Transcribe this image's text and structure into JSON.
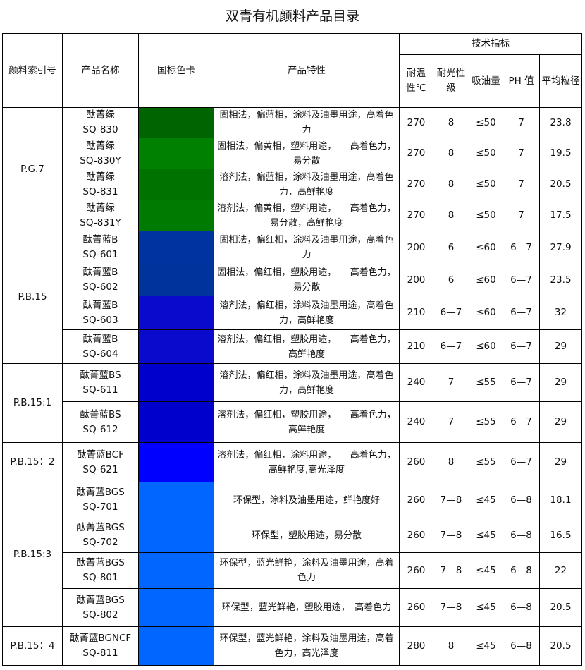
{
  "title": "双青有机颜料产品目录",
  "headers": {
    "index": "颜料索引号",
    "name": "产品名称",
    "color": "国标色卡",
    "feature": "产品特性",
    "tech": "技术指标",
    "heat": "耐温性℃",
    "light": "耐光性级",
    "oil": "吸油量",
    "ph": "PH 值",
    "size": "平均粒径"
  },
  "groups": [
    {
      "index": "P.G.7",
      "rows": [
        {
          "name": "酞菁绿",
          "code": "SQ-830",
          "color": "#006400",
          "feature": "固相法，偏蓝相，涂料及油墨用途，高着色力",
          "heat": "270",
          "light": "8",
          "oil": "≤50",
          "ph": "7",
          "size": "23.8"
        },
        {
          "name": "酞菁绿",
          "code": "SQ-830Y",
          "color": "#008000",
          "feature": "固相法，偏黄相，塑料用途，　　高着色力，易分散",
          "heat": "270",
          "light": "8",
          "oil": "≤50",
          "ph": "7",
          "size": "19.5"
        },
        {
          "name": "酞菁绿",
          "code": "SQ-831",
          "color": "#007200",
          "feature": "溶剂法，偏蓝相，涂料及油墨用途，高着色力，高鲜艳度",
          "heat": "270",
          "light": "8",
          "oil": "≤50",
          "ph": "7",
          "size": "20.5"
        },
        {
          "name": "酞菁绿",
          "code": "SQ-831Y",
          "color": "#007A00",
          "feature": "溶剂法，偏黄相，塑料用途，　　高着色力，易分散，高鲜艳度",
          "heat": "270",
          "light": "8",
          "oil": "≤50",
          "ph": "7",
          "size": "17.5"
        }
      ]
    },
    {
      "index": "P.B.15",
      "rows": [
        {
          "name": "酞菁蓝B",
          "code": "SQ-601",
          "color": "#0033A0",
          "feature": "固相法，偏红相，涂料及油墨用途，高着色力",
          "heat": "200",
          "light": "6",
          "oil": "≤60",
          "ph": "6—7",
          "size": "27.9"
        },
        {
          "name": "酞菁蓝B",
          "code": "SQ-602",
          "color": "#00339C",
          "feature": "固相法，偏红相，塑胶用途，　　高着色力，易分散",
          "heat": "200",
          "light": "6",
          "oil": "≤60",
          "ph": "6—7",
          "size": "23.5"
        },
        {
          "name": "酞菁蓝B",
          "code": "SQ-603",
          "color": "#0A0ACC",
          "feature": "溶剂法，偏红相，涂料及油墨用途，高着色力，高鲜艳度",
          "heat": "210",
          "light": "6—7",
          "oil": "≤60",
          "ph": "6—7",
          "size": "32"
        },
        {
          "name": "酞菁蓝B",
          "code": "SQ-604",
          "color": "#0A0ACC",
          "feature": "溶剂法，偏红相，塑胶用途，　　高着色力，高鲜艳度",
          "heat": "210",
          "light": "6—7",
          "oil": "≤60",
          "ph": "6—7",
          "size": "29"
        }
      ]
    },
    {
      "index": "P.B.15:1",
      "rows": [
        {
          "name": "酞菁蓝BS",
          "code": "SQ-611",
          "color": "#0000CC",
          "feature": "溶剂法，偏红相，涂料及油墨用途，高着色力，高鲜艳度",
          "heat": "240",
          "light": "7",
          "oil": "≤55",
          "ph": "6—7",
          "size": "29"
        },
        {
          "name": "酞菁蓝BS",
          "code": "SQ-612",
          "color": "#0000CC",
          "feature": "溶剂法，偏红相，塑胶用途，　　高着色力，高鲜艳度",
          "heat": "240",
          "light": "7",
          "oil": "≤55",
          "ph": "6—7",
          "size": "29"
        }
      ]
    },
    {
      "index": "P.B.15：2",
      "rows": [
        {
          "name": "酞菁蓝BCF",
          "code": "SQ-621",
          "color": "#0000FF",
          "feature": "溶剂法，偏红相，涂料用途，　　高着色力，高鲜艳度,高光泽度",
          "heat": "260",
          "light": "8",
          "oil": "≤55",
          "ph": "6—7",
          "size": "29"
        }
      ]
    },
    {
      "index": "P.B.15:3",
      "rows": [
        {
          "name": "酞菁蓝BGS",
          "code": "SQ-701",
          "color": "#0066FF",
          "feature": "环保型，涂料及油墨用途，鲜艳度好",
          "heat": "260",
          "light": "7—8",
          "oil": "≤45",
          "ph": "6—8",
          "size": "18.1"
        },
        {
          "name": "酞菁蓝BGS",
          "code": "SQ-702",
          "color": "#0066FF",
          "feature": "环保型，塑胶用途，易分散",
          "heat": "260",
          "light": "7—8",
          "oil": "≤45",
          "ph": "6—8",
          "size": "16.5"
        },
        {
          "name": "酞菁蓝BGS",
          "code": "SQ-801",
          "color": "#0066FF",
          "feature": "环保型，蓝光鲜艳，涂料及油墨用途，高着色力",
          "heat": "260",
          "light": "7—8",
          "oil": "≤45",
          "ph": "6—8",
          "size": "22"
        },
        {
          "name": "酞菁蓝BGS",
          "code": "SQ-802",
          "color": "#0066FF",
          "feature": "环保型，蓝光鲜艳，塑胶用途，　高着色力",
          "heat": "260",
          "light": "7—8",
          "oil": "≤45",
          "ph": "6—8",
          "size": "20.5"
        }
      ]
    },
    {
      "index": "P.B.15：4",
      "rows": [
        {
          "name": "酞菁蓝BGNCF",
          "code": "SQ-811",
          "color": "#0066FF",
          "feature": "环保型，蓝光鲜艳，涂料及油墨用途，高着色力，高光泽度",
          "heat": "280",
          "light": "8",
          "oil": "≤45",
          "ph": "6—8",
          "size": "20.5"
        }
      ]
    }
  ]
}
